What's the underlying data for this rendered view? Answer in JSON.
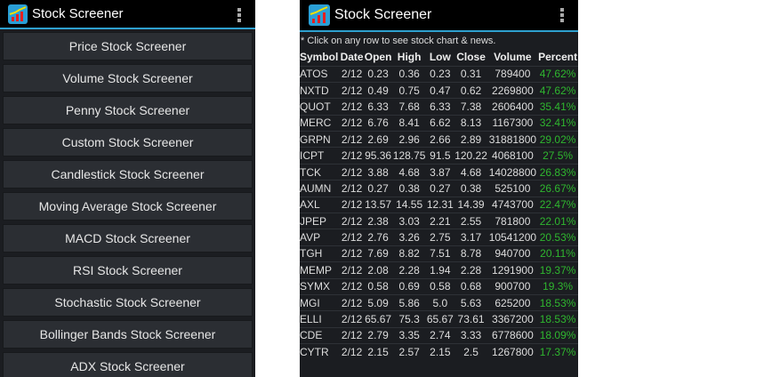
{
  "app": {
    "title": "Stock Screener",
    "logo_icon": "chart-logo-icon",
    "menu_icon": "overflow-menu-icon",
    "accent": "#2ea0cf",
    "positive_color": "#2fb62f"
  },
  "menu": {
    "items": [
      "Price Stock Screener",
      "Volume Stock Screener",
      "Penny Stock Screener",
      "Custom Stock Screener",
      "Candlestick Stock Screener",
      "Moving Average Stock Screener",
      "MACD Stock Screener",
      "RSI Stock Screener",
      "Stochastic Stock Screener",
      "Bollinger Bands Stock Screener",
      "ADX Stock Screener"
    ]
  },
  "results": {
    "note": "* Click on any row to see stock chart & news.",
    "columns": [
      "Symbol",
      "Date",
      "Open",
      "High",
      "Low",
      "Close",
      "Volume",
      "Percent"
    ],
    "rows": [
      [
        "ATOS",
        "2/12",
        "0.23",
        "0.36",
        "0.23",
        "0.31",
        "789400",
        "47.62%"
      ],
      [
        "NXTD",
        "2/12",
        "0.49",
        "0.75",
        "0.47",
        "0.62",
        "2269800",
        "47.62%"
      ],
      [
        "QUOT",
        "2/12",
        "6.33",
        "7.68",
        "6.33",
        "7.38",
        "2606400",
        "35.41%"
      ],
      [
        "MERC",
        "2/12",
        "6.76",
        "8.41",
        "6.62",
        "8.13",
        "1167300",
        "32.41%"
      ],
      [
        "GRPN",
        "2/12",
        "2.69",
        "2.96",
        "2.66",
        "2.89",
        "31881800",
        "29.02%"
      ],
      [
        "ICPT",
        "2/12",
        "95.36",
        "128.75",
        "91.5",
        "120.22",
        "4068100",
        "27.5%"
      ],
      [
        "TCK",
        "2/12",
        "3.88",
        "4.68",
        "3.87",
        "4.68",
        "14028800",
        "26.83%"
      ],
      [
        "AUMN",
        "2/12",
        "0.27",
        "0.38",
        "0.27",
        "0.38",
        "525100",
        "26.67%"
      ],
      [
        "AXL",
        "2/12",
        "13.57",
        "14.55",
        "12.31",
        "14.39",
        "4743700",
        "22.47%"
      ],
      [
        "JPEP",
        "2/12",
        "2.38",
        "3.03",
        "2.21",
        "2.55",
        "781800",
        "22.01%"
      ],
      [
        "AVP",
        "2/12",
        "2.76",
        "3.26",
        "2.75",
        "3.17",
        "10541200",
        "20.53%"
      ],
      [
        "TGH",
        "2/12",
        "7.69",
        "8.82",
        "7.51",
        "8.78",
        "940700",
        "20.11%"
      ],
      [
        "MEMP",
        "2/12",
        "2.08",
        "2.28",
        "1.94",
        "2.28",
        "1291900",
        "19.37%"
      ],
      [
        "SYMX",
        "2/12",
        "0.58",
        "0.69",
        "0.58",
        "0.68",
        "900700",
        "19.3%"
      ],
      [
        "MGI",
        "2/12",
        "5.09",
        "5.86",
        "5.0",
        "5.63",
        "625200",
        "18.53%"
      ],
      [
        "ELLI",
        "2/12",
        "65.67",
        "75.3",
        "65.67",
        "73.61",
        "3367200",
        "18.53%"
      ],
      [
        "CDE",
        "2/12",
        "2.79",
        "3.35",
        "2.74",
        "3.33",
        "6778600",
        "18.09%"
      ],
      [
        "CYTR",
        "2/12",
        "2.15",
        "2.57",
        "2.15",
        "2.5",
        "1267800",
        "17.37%"
      ]
    ]
  }
}
